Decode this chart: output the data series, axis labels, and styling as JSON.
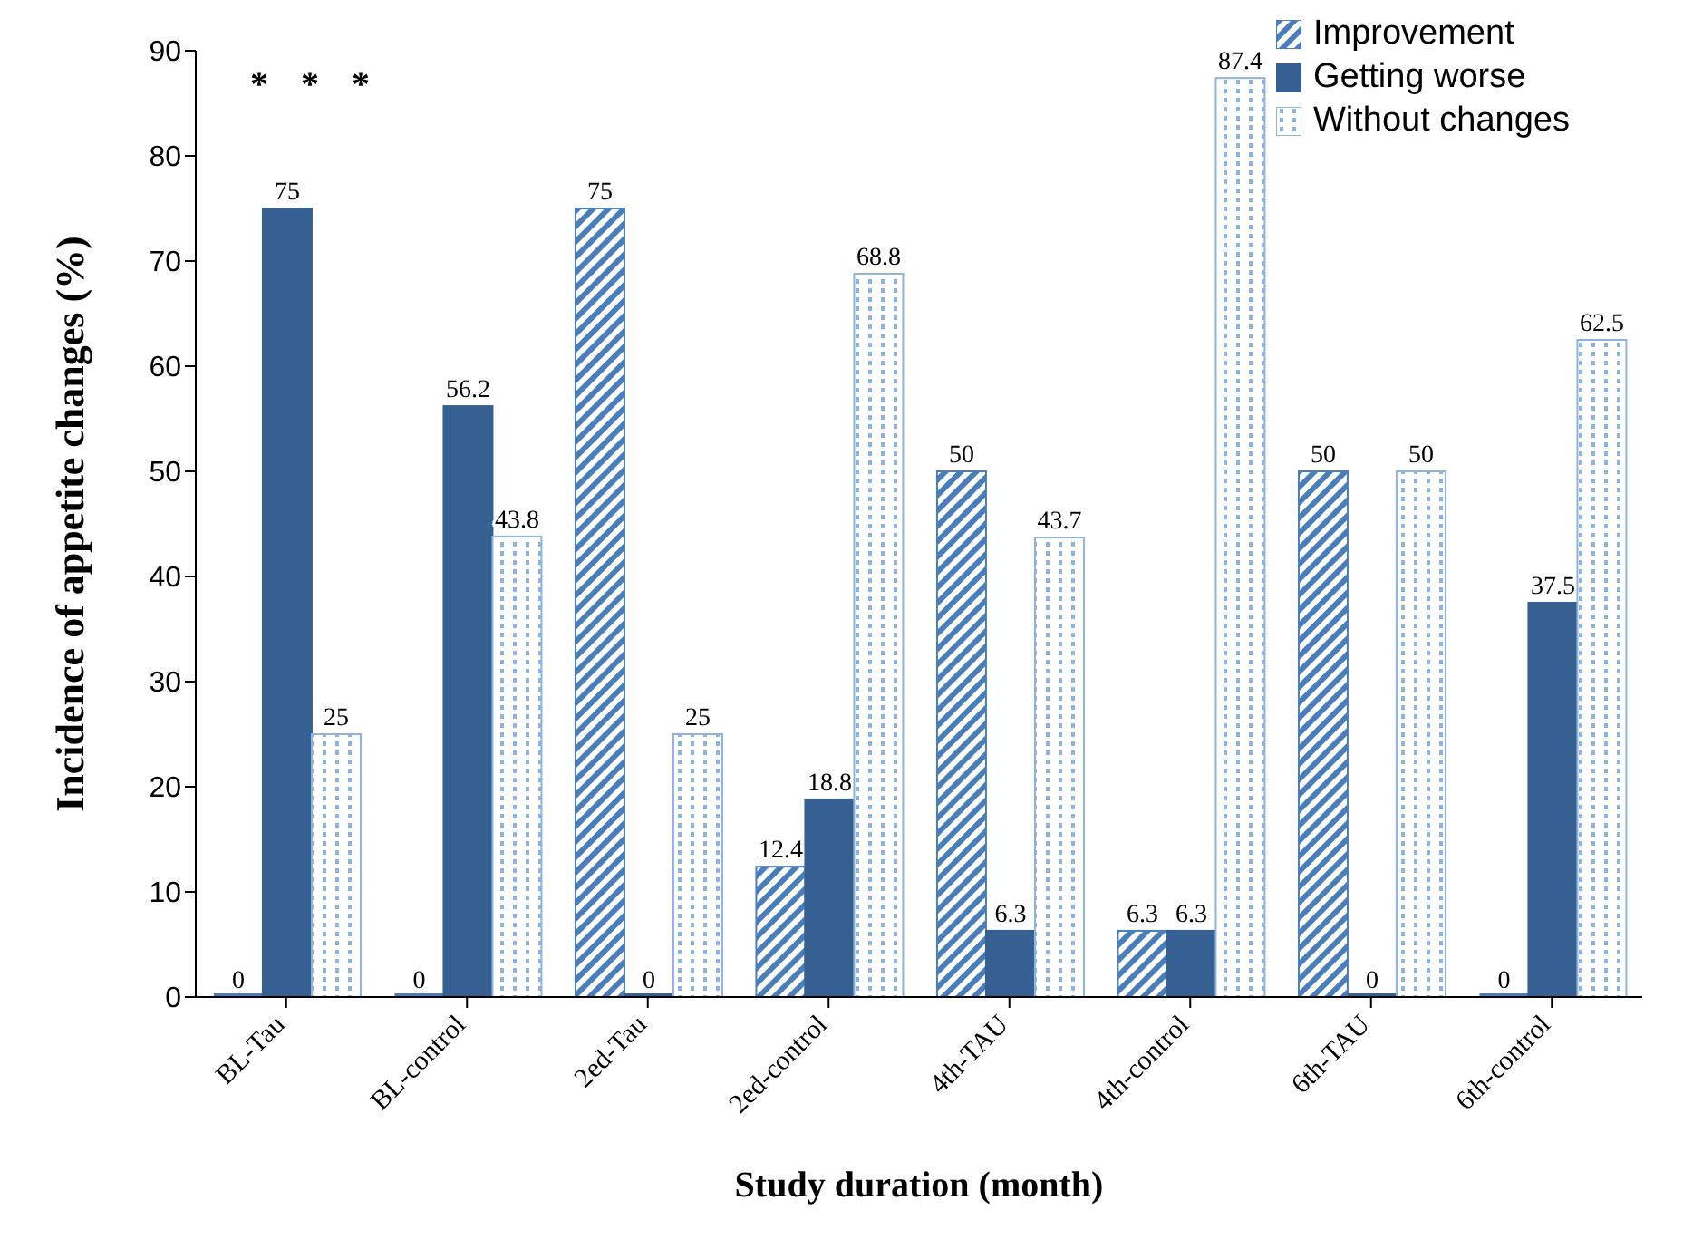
{
  "chart_data": {
    "type": "bar",
    "xlabel": "Study duration (month)",
    "ylabel": "Incidence of appetite changes (%)",
    "categories": [
      "BL-Tau",
      "BL-control",
      "2ed-Tau",
      "2ed-control",
      "4th-TAU",
      "4th-control",
      "6th-TAU",
      "6th-control"
    ],
    "series": [
      {
        "name": "Improvement",
        "color": "#4a7ebb",
        "values": [
          0,
          0,
          75,
          12.4,
          50,
          6.3,
          50,
          0
        ]
      },
      {
        "name": "Getting worse",
        "color": "#376092",
        "values": [
          75,
          56.2,
          0,
          18.8,
          6.3,
          6.3,
          0,
          37.5
        ]
      },
      {
        "name": "Without changes",
        "color": "#8db3e2",
        "values": [
          25,
          43.8,
          25,
          68.8,
          43.7,
          87.4,
          50,
          62.5
        ]
      }
    ],
    "ylim": [
      0,
      90
    ],
    "yticks": [
      0,
      10,
      20,
      30,
      40,
      50,
      60,
      70,
      80,
      90
    ],
    "grid": false,
    "legend": "top right",
    "data_labels": true,
    "annotations": [
      "*",
      "*",
      "*"
    ]
  }
}
